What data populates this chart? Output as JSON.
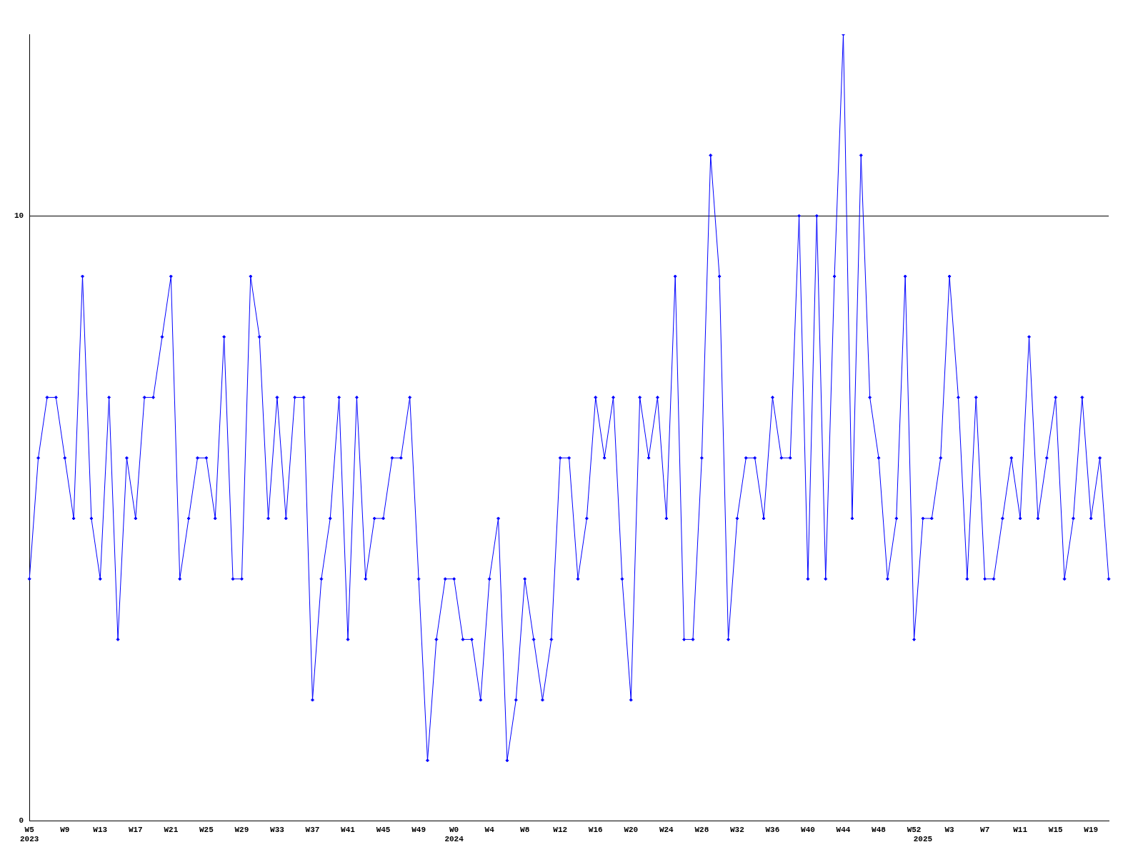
{
  "chart_data": {
    "type": "line",
    "categories": [
      "W5\n2023",
      null,
      null,
      null,
      "W9",
      null,
      null,
      null,
      "W13",
      null,
      null,
      null,
      "W17",
      null,
      null,
      null,
      "W21",
      null,
      null,
      null,
      "W25",
      null,
      null,
      null,
      "W29",
      null,
      null,
      null,
      "W33",
      null,
      null,
      null,
      "W37",
      null,
      null,
      null,
      "W41",
      null,
      null,
      null,
      "W45",
      null,
      null,
      null,
      "W49",
      null,
      null,
      null,
      "W0\n2024",
      null,
      null,
      null,
      "W4",
      null,
      null,
      null,
      "W8",
      null,
      null,
      null,
      "W12",
      null,
      null,
      null,
      "W16",
      null,
      null,
      null,
      "W20",
      null,
      null,
      null,
      "W24",
      null,
      null,
      null,
      "W28",
      null,
      null,
      null,
      "W32",
      null,
      null,
      null,
      "W36",
      null,
      null,
      null,
      "W40",
      null,
      null,
      null,
      "W44",
      null,
      null,
      null,
      "W48",
      null,
      null,
      null,
      "W52",
      "\n2025",
      null,
      null,
      "W3",
      null,
      null,
      null,
      "W7",
      null,
      null,
      null,
      "W11",
      null,
      null,
      null,
      "W15",
      null,
      null,
      null,
      "W19",
      null,
      null
    ],
    "series": [
      {
        "color": "#0000ff",
        "values": [
          4,
          6,
          7,
          7,
          6,
          5,
          9,
          5,
          4,
          7,
          3,
          6,
          5,
          7,
          7,
          8,
          9,
          4,
          5,
          6,
          6,
          5,
          8,
          4,
          4,
          9,
          8,
          5,
          7,
          5,
          7,
          7,
          2,
          4,
          5,
          7,
          3,
          7,
          4,
          5,
          5,
          6,
          6,
          7,
          4,
          1,
          3,
          4,
          4,
          3,
          3,
          2,
          4,
          5,
          1,
          2,
          4,
          3,
          2,
          3,
          6,
          6,
          4,
          5,
          7,
          6,
          7,
          4,
          2,
          7,
          6,
          7,
          5,
          9,
          3,
          3,
          6,
          11,
          9,
          3,
          5,
          6,
          6,
          5,
          7,
          6,
          6,
          10,
          4,
          10,
          4,
          9,
          13,
          5,
          11,
          7,
          6,
          4,
          5,
          9,
          3,
          5,
          5,
          6,
          9,
          7,
          4,
          7,
          4,
          4,
          5,
          6,
          5,
          8,
          5,
          6,
          7,
          4,
          5,
          7,
          5,
          6,
          4
        ]
      }
    ],
    "ylim": [
      0,
      13
    ],
    "yticks": [
      0,
      10
    ],
    "grid": "y",
    "marker": "diamond",
    "line_style": "solid",
    "legend": false
  }
}
